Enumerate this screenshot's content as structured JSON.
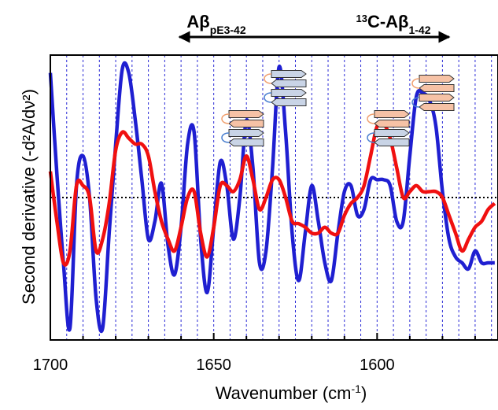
{
  "chart_data": {
    "type": "line",
    "xlabel_main": "Wavenumber (cm",
    "xlabel_sup": "-1",
    "xlabel_end": ")",
    "ylabel": "Second derivative (-d²A/dν²)",
    "xlim": [
      1700,
      1563
    ],
    "x_reversed": true,
    "x_ticks": [
      1700,
      1650,
      1600
    ],
    "y_ticks": [],
    "grid": "vertical dashed blue lines every 5 cm-1",
    "baseline": "dotted horizontal line at zero",
    "ylim": [
      -1.2,
      1.2
    ],
    "region_labels": [
      {
        "main": "Aβ",
        "sub": "pE3-42",
        "arrow": "left",
        "x_from": 1620,
        "x_to": 1662
      },
      {
        "pre": "13",
        "main": "C-Aβ",
        "sub": "1-42",
        "arrow": "right",
        "x_from": 1620,
        "x_to": 1578
      }
    ],
    "series": [
      {
        "color": "#1f1fd1",
        "x": [
          1700,
          1698,
          1696,
          1694,
          1692,
          1690,
          1688,
          1686,
          1684,
          1682,
          1680,
          1678,
          1676,
          1674,
          1672,
          1670,
          1668,
          1666,
          1664,
          1662,
          1660,
          1658,
          1656,
          1654,
          1652,
          1650,
          1648,
          1646,
          1644,
          1642,
          1640,
          1638,
          1636,
          1634,
          1632,
          1630,
          1628,
          1626,
          1624,
          1622,
          1620,
          1618,
          1616,
          1614,
          1612,
          1610,
          1608,
          1606,
          1604,
          1602,
          1600,
          1598,
          1596,
          1594,
          1592,
          1590,
          1588,
          1586,
          1584,
          1582,
          1580,
          1578,
          1576,
          1574,
          1572,
          1570,
          1568,
          1566,
          1564
        ],
        "y": [
          1.05,
          0.2,
          -0.55,
          -1.1,
          0.1,
          0.35,
          0.0,
          -0.85,
          -1.1,
          -0.3,
          0.45,
          1.08,
          1.05,
          0.65,
          0.15,
          -0.35,
          -0.2,
          0.12,
          -0.4,
          -0.65,
          -0.25,
          0.45,
          0.55,
          -0.35,
          -0.8,
          -0.25,
          0.3,
          0.1,
          -0.35,
          0.0,
          0.65,
          0.25,
          -0.55,
          -0.45,
          0.25,
          1.1,
          0.55,
          -0.3,
          -0.7,
          -0.3,
          0.1,
          -0.2,
          -0.55,
          -0.7,
          -0.3,
          0.05,
          0.1,
          -0.15,
          -0.1,
          0.15,
          0.15,
          0.15,
          0.1,
          -0.2,
          -0.2,
          0.35,
          0.85,
          0.88,
          0.82,
          0.6,
          0.05,
          -0.35,
          -0.5,
          -0.55,
          -0.6,
          -0.45,
          -0.55,
          -0.55,
          -0.55
        ]
      },
      {
        "color": "#f01010",
        "x": [
          1700,
          1698,
          1696,
          1694,
          1692,
          1690,
          1688,
          1686,
          1684,
          1682,
          1680,
          1678,
          1676,
          1674,
          1672,
          1670,
          1668,
          1666,
          1664,
          1662,
          1660,
          1658,
          1656,
          1654,
          1652,
          1650,
          1648,
          1646,
          1644,
          1642,
          1640,
          1638,
          1636,
          1634,
          1632,
          1630,
          1628,
          1626,
          1624,
          1622,
          1620,
          1618,
          1616,
          1614,
          1612,
          1610,
          1608,
          1606,
          1604,
          1602,
          1600,
          1598,
          1596,
          1594,
          1592,
          1590,
          1588,
          1586,
          1584,
          1582,
          1580,
          1578,
          1576,
          1574,
          1572,
          1570,
          1568,
          1566,
          1564
        ],
        "y": [
          0.22,
          -0.2,
          -0.55,
          -0.45,
          0.1,
          0.1,
          0.0,
          -0.45,
          -0.35,
          -0.05,
          0.4,
          0.55,
          0.5,
          0.45,
          0.45,
          0.35,
          0.05,
          -0.2,
          -0.35,
          -0.45,
          -0.25,
          0.0,
          0.05,
          -0.3,
          -0.5,
          -0.25,
          0.1,
          0.1,
          0.05,
          0.15,
          0.35,
          0.15,
          -0.1,
          0.0,
          0.15,
          0.15,
          0.0,
          -0.2,
          -0.22,
          -0.25,
          -0.3,
          -0.3,
          -0.25,
          -0.3,
          -0.3,
          -0.15,
          -0.05,
          0.0,
          0.1,
          0.35,
          0.6,
          0.62,
          0.5,
          0.25,
          0.0,
          0.05,
          0.1,
          0.05,
          0.05,
          0.05,
          0.0,
          -0.15,
          -0.3,
          -0.45,
          -0.35,
          -0.25,
          -0.2,
          -0.1,
          -0.05
        ]
      }
    ]
  }
}
